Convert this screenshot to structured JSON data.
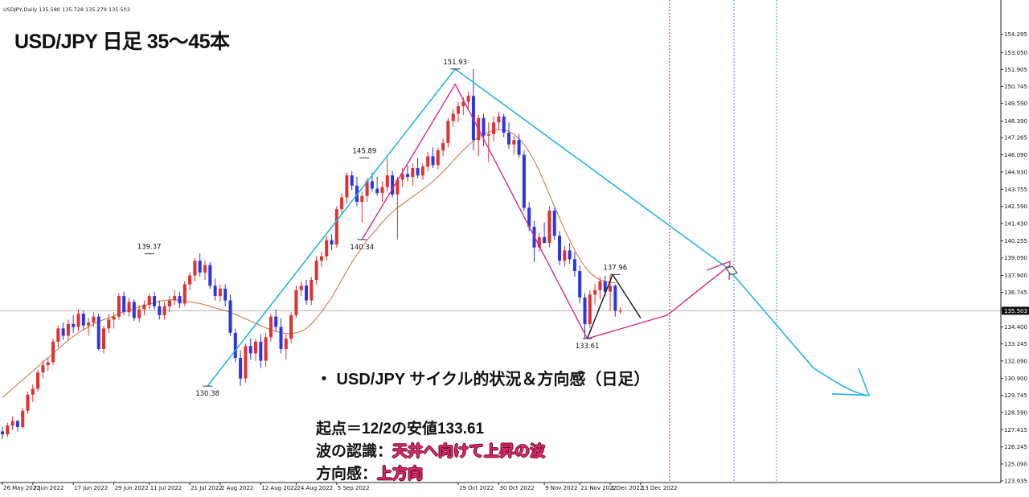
{
  "header": {
    "symbol_line": "USDJPY,Daily  135.580 135.728 135.279 135.503"
  },
  "title": "USD/JPY 日足 35～45本",
  "notes": {
    "heading": "・ USD/JPY サイクル的状況＆方向感（日足）",
    "line1_label": "起点＝12/2の安値133.61",
    "line2_label": "波の認識：",
    "line2_value": "天井へ向けて上昇の波",
    "line3_label": "方向感：",
    "line3_value": "上方向"
  },
  "colors": {
    "bull": "#e03030",
    "bear": "#2a36e0",
    "ma": "#c8703a",
    "cyan_line": "#27b3e0",
    "magenta_line": "#d22c8a",
    "black_line": "#111111",
    "period_sep_red": "#b02020",
    "period_sep_blue": "#5b8ad8",
    "price_line": "#b0b0b0"
  },
  "chart_data": {
    "type": "candlestick",
    "symbol": "USDJPY",
    "timeframe": "Daily",
    "ylim": [
      123.935,
      155.2
    ],
    "y_ticks": [
      "154.295",
      "153.050",
      "151.905",
      "150.745",
      "149.590",
      "148.390",
      "147.265",
      "146.090",
      "144.930",
      "143.755",
      "142.590",
      "141.430",
      "140.255",
      "139.090",
      "137.900",
      "136.745",
      "135.580",
      "134.400",
      "133.245",
      "132.090",
      "130.900",
      "129.745",
      "128.590",
      "127.415",
      "126.245",
      "125.090",
      "123.935"
    ],
    "x_ticks": [
      "26 May 2022",
      "7 Jun 2022",
      "17 Jun 2022",
      "29 Jun 2022",
      "11 Jul 2022",
      "21 Jul 2022",
      "2 Aug 2022",
      "12 Aug 2022",
      "24 Aug 2022",
      "5 Sep 2022",
      "19 Oct 2022",
      "30 Oct 2022",
      "9 Nov 2022",
      "21 Nov 2022",
      "1 Dec 2022",
      "13 Dec 2022"
    ],
    "current_price": "135.503",
    "marked_points": [
      {
        "label": "139.37",
        "price": 139.37
      },
      {
        "label": "130.38",
        "price": 130.38
      },
      {
        "label": "145.89",
        "price": 145.89
      },
      {
        "label": "140.34",
        "price": 140.34
      },
      {
        "label": "151.93",
        "price": 151.93
      },
      {
        "label": "137.96",
        "price": 137.96
      },
      {
        "label": "133.61",
        "price": 133.61
      }
    ],
    "candles": [
      [
        127.3,
        127.6,
        126.8,
        127.1
      ],
      [
        127.1,
        127.9,
        126.9,
        127.7
      ],
      [
        127.7,
        128.3,
        127.4,
        128.0
      ],
      [
        128.0,
        128.1,
        127.3,
        127.6
      ],
      [
        127.6,
        128.9,
        127.5,
        128.7
      ],
      [
        128.7,
        130.0,
        128.5,
        129.8
      ],
      [
        129.8,
        130.5,
        129.3,
        130.2
      ],
      [
        130.2,
        131.5,
        130.0,
        131.3
      ],
      [
        131.3,
        132.1,
        130.9,
        131.8
      ],
      [
        131.8,
        132.3,
        131.4,
        132.0
      ],
      [
        132.0,
        133.6,
        131.8,
        133.4
      ],
      [
        133.4,
        134.5,
        133.0,
        134.3
      ],
      [
        134.3,
        134.7,
        133.5,
        133.8
      ],
      [
        133.8,
        134.9,
        133.5,
        134.6
      ],
      [
        134.6,
        135.2,
        134.0,
        134.4
      ],
      [
        134.4,
        135.6,
        134.1,
        135.3
      ],
      [
        135.3,
        135.5,
        134.2,
        134.5
      ],
      [
        134.5,
        135.0,
        133.8,
        134.7
      ],
      [
        134.7,
        135.4,
        134.4,
        135.1
      ],
      [
        135.1,
        135.3,
        132.8,
        132.9
      ],
      [
        132.9,
        134.5,
        132.6,
        134.3
      ],
      [
        134.3,
        135.3,
        134.0,
        134.9
      ],
      [
        134.9,
        135.4,
        134.3,
        135.1
      ],
      [
        135.1,
        136.7,
        134.9,
        136.5
      ],
      [
        136.5,
        136.8,
        135.2,
        135.4
      ],
      [
        135.4,
        136.4,
        135.1,
        136.1
      ],
      [
        136.1,
        136.3,
        134.8,
        135.0
      ],
      [
        135.0,
        135.9,
        134.7,
        135.6
      ],
      [
        135.6,
        136.2,
        135.2,
        135.9
      ],
      [
        135.9,
        136.7,
        135.6,
        136.5
      ],
      [
        136.5,
        136.8,
        135.6,
        135.8
      ],
      [
        135.8,
        136.2,
        134.9,
        135.2
      ],
      [
        135.2,
        136.1,
        134.9,
        135.8
      ],
      [
        135.8,
        136.5,
        135.4,
        136.2
      ],
      [
        136.2,
        136.9,
        135.9,
        136.5
      ],
      [
        136.5,
        136.8,
        135.7,
        136.0
      ],
      [
        136.0,
        137.5,
        135.8,
        137.3
      ],
      [
        137.3,
        138.1,
        136.9,
        137.9
      ],
      [
        137.9,
        139.1,
        137.5,
        138.9
      ],
      [
        138.9,
        139.4,
        137.8,
        138.1
      ],
      [
        138.1,
        138.9,
        137.6,
        138.6
      ],
      [
        138.6,
        138.8,
        137.0,
        137.2
      ],
      [
        137.2,
        137.7,
        136.2,
        136.5
      ],
      [
        136.5,
        137.3,
        136.1,
        137.0
      ],
      [
        137.0,
        137.3,
        135.8,
        136.2
      ],
      [
        136.2,
        136.6,
        133.8,
        134.0
      ],
      [
        134.0,
        134.3,
        132.0,
        132.3
      ],
      [
        132.3,
        132.8,
        130.38,
        130.9
      ],
      [
        130.9,
        133.3,
        130.6,
        133.1
      ],
      [
        133.1,
        133.6,
        132.2,
        132.6
      ],
      [
        132.6,
        133.6,
        132.1,
        133.4
      ],
      [
        133.4,
        133.9,
        131.6,
        132.1
      ],
      [
        132.1,
        134.0,
        131.7,
        133.7
      ],
      [
        133.7,
        135.3,
        133.4,
        135.1
      ],
      [
        135.1,
        135.6,
        134.1,
        134.4
      ],
      [
        134.4,
        135.0,
        132.6,
        132.9
      ],
      [
        132.9,
        133.9,
        132.2,
        133.6
      ],
      [
        133.6,
        135.4,
        133.3,
        135.2
      ],
      [
        135.2,
        137.2,
        135.0,
        136.9
      ],
      [
        136.9,
        137.5,
        136.5,
        137.2
      ],
      [
        137.2,
        137.6,
        135.9,
        136.2
      ],
      [
        136.2,
        137.8,
        135.9,
        137.6
      ],
      [
        137.6,
        139.2,
        137.3,
        138.9
      ],
      [
        138.9,
        139.5,
        138.5,
        139.2
      ],
      [
        139.2,
        140.6,
        138.9,
        140.3
      ],
      [
        140.3,
        140.7,
        139.6,
        140.0
      ],
      [
        140.0,
        142.6,
        139.8,
        142.4
      ],
      [
        142.4,
        143.5,
        142.0,
        143.2
      ],
      [
        143.2,
        144.9,
        142.8,
        144.7
      ],
      [
        144.7,
        145.0,
        143.7,
        144.0
      ],
      [
        144.0,
        144.6,
        142.6,
        142.9
      ],
      [
        142.9,
        143.6,
        141.5,
        143.3
      ],
      [
        143.3,
        144.5,
        142.9,
        144.3
      ],
      [
        144.3,
        144.9,
        143.6,
        143.8
      ],
      [
        143.8,
        144.6,
        143.3,
        143.5
      ],
      [
        143.5,
        144.3,
        142.9,
        143.9
      ],
      [
        143.9,
        145.89,
        143.6,
        144.7
      ],
      [
        144.7,
        145.0,
        143.2,
        143.4
      ],
      [
        143.4,
        144.6,
        140.34,
        144.4
      ],
      [
        144.4,
        145.2,
        143.9,
        144.8
      ],
      [
        144.8,
        145.4,
        144.3,
        144.6
      ],
      [
        144.6,
        145.5,
        144.0,
        145.2
      ],
      [
        145.2,
        145.9,
        144.5,
        144.7
      ],
      [
        144.7,
        145.5,
        144.4,
        145.3
      ],
      [
        145.3,
        146.3,
        145.0,
        146.0
      ],
      [
        146.0,
        146.6,
        145.2,
        145.4
      ],
      [
        145.4,
        146.6,
        145.1,
        146.4
      ],
      [
        146.4,
        147.2,
        146.0,
        146.9
      ],
      [
        146.9,
        148.6,
        146.6,
        148.4
      ],
      [
        148.4,
        149.2,
        148.0,
        148.9
      ],
      [
        148.9,
        149.7,
        148.3,
        149.4
      ],
      [
        149.4,
        150.0,
        148.8,
        149.7
      ],
      [
        149.7,
        150.4,
        149.2,
        150.1
      ],
      [
        150.1,
        151.93,
        146.4,
        147.1
      ],
      [
        147.1,
        148.8,
        146.0,
        148.6
      ],
      [
        148.6,
        148.9,
        146.7,
        147.4
      ],
      [
        147.4,
        148.3,
        145.6,
        147.5
      ],
      [
        147.5,
        148.7,
        147.0,
        148.3
      ],
      [
        148.3,
        149.0,
        147.8,
        148.7
      ],
      [
        148.7,
        148.9,
        147.3,
        147.6
      ],
      [
        147.6,
        148.3,
        146.5,
        146.8
      ],
      [
        146.8,
        147.4,
        146.1,
        147.1
      ],
      [
        147.1,
        147.5,
        145.9,
        146.1
      ],
      [
        146.1,
        146.4,
        142.3,
        142.5
      ],
      [
        142.5,
        142.9,
        140.9,
        141.2
      ],
      [
        141.2,
        141.6,
        138.8,
        139.8
      ],
      [
        139.8,
        140.8,
        139.5,
        140.5
      ],
      [
        140.5,
        141.5,
        140.2,
        140.1
      ],
      [
        140.1,
        142.6,
        139.8,
        142.3
      ],
      [
        142.3,
        142.5,
        140.3,
        140.6
      ],
      [
        140.6,
        140.9,
        138.6,
        138.9
      ],
      [
        138.9,
        139.9,
        138.5,
        139.6
      ],
      [
        139.6,
        140.1,
        138.7,
        139.0
      ],
      [
        139.0,
        139.5,
        137.8,
        138.2
      ],
      [
        138.2,
        138.6,
        136.0,
        136.4
      ],
      [
        136.4,
        136.7,
        133.61,
        134.6
      ],
      [
        134.6,
        136.9,
        134.3,
        136.6
      ],
      [
        136.6,
        137.3,
        135.9,
        136.9
      ],
      [
        136.9,
        137.8,
        136.3,
        137.5
      ],
      [
        137.5,
        137.9,
        136.5,
        136.8
      ],
      [
        136.8,
        137.96,
        135.5,
        137.2
      ],
      [
        137.2,
        137.3,
        135.1,
        135.5
      ],
      [
        135.5,
        135.728,
        135.279,
        135.503
      ]
    ],
    "ma_line": [
      129.6,
      129.9,
      130.2,
      130.5,
      130.8,
      131.1,
      131.4,
      131.7,
      132.0,
      132.3,
      132.6,
      132.9,
      133.2,
      133.5,
      133.75,
      134.0,
      134.2,
      134.4,
      134.6,
      134.75,
      134.9,
      135.0,
      135.15,
      135.3,
      135.45,
      135.55,
      135.65,
      135.75,
      135.85,
      135.95,
      136.05,
      136.15,
      136.2,
      136.25,
      136.25,
      136.2,
      136.15,
      136.1,
      136.05,
      136.0,
      135.9,
      135.8,
      135.7,
      135.6,
      135.5,
      135.4,
      135.25,
      135.1,
      134.95,
      134.8,
      134.65,
      134.5,
      134.35,
      134.2,
      134.1,
      134.0,
      133.95,
      133.95,
      134.0,
      134.1,
      134.3,
      134.6,
      135.0,
      135.4,
      135.9,
      136.4,
      137.0,
      137.6,
      138.2,
      138.8,
      139.3,
      139.8,
      140.3,
      140.7,
      141.1,
      141.5,
      141.9,
      142.2,
      142.5,
      142.75,
      143.0,
      143.25,
      143.5,
      143.75,
      144.0,
      144.3,
      144.6,
      144.95,
      145.3,
      145.7,
      146.05,
      146.4,
      146.75,
      147.05,
      147.3,
      147.5,
      147.65,
      147.75,
      147.8,
      147.8,
      147.7,
      147.5,
      147.2,
      146.8,
      146.3,
      145.7,
      145.0,
      144.2,
      143.4,
      142.6,
      141.8,
      141.0,
      140.3,
      139.6,
      139.0,
      138.5,
      138.1,
      137.8,
      137.6,
      137.5,
      137.45,
      137.4
    ]
  }
}
